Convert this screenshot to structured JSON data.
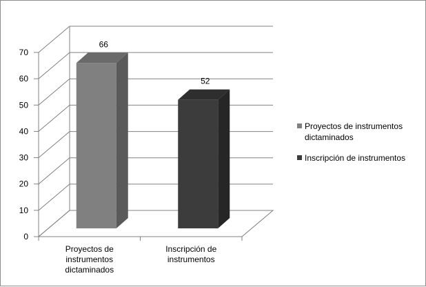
{
  "chart_data": {
    "type": "bar",
    "three_d": true,
    "categories": [
      [
        "Proyectos de",
        "instrumentos",
        "dictaminados"
      ],
      [
        "Inscripción de",
        "instrumentos"
      ]
    ],
    "series": [
      {
        "name": "Proyectos de instrumentos dictaminados",
        "legend_lines": [
          "Proyectos de instrumentos",
          "dictaminados"
        ],
        "values": [
          66,
          null
        ],
        "color": "#808080",
        "side_color": "#5a5a5a",
        "top_color": "#6a6a6a"
      },
      {
        "name": "Inscripción de instrumentos",
        "legend_lines": [
          "Inscripción de instrumentos"
        ],
        "values": [
          null,
          52
        ],
        "color": "#3c3c3c",
        "side_color": "#262626",
        "top_color": "#2e2e2e"
      }
    ],
    "data_labels": [
      "66",
      "52"
    ],
    "yticks": [
      "0",
      "10",
      "20",
      "30",
      "40",
      "50",
      "60",
      "70"
    ],
    "ylim": [
      0,
      70
    ],
    "grid": true,
    "legend_position": "right",
    "title": "",
    "xlabel": "",
    "ylabel": ""
  }
}
